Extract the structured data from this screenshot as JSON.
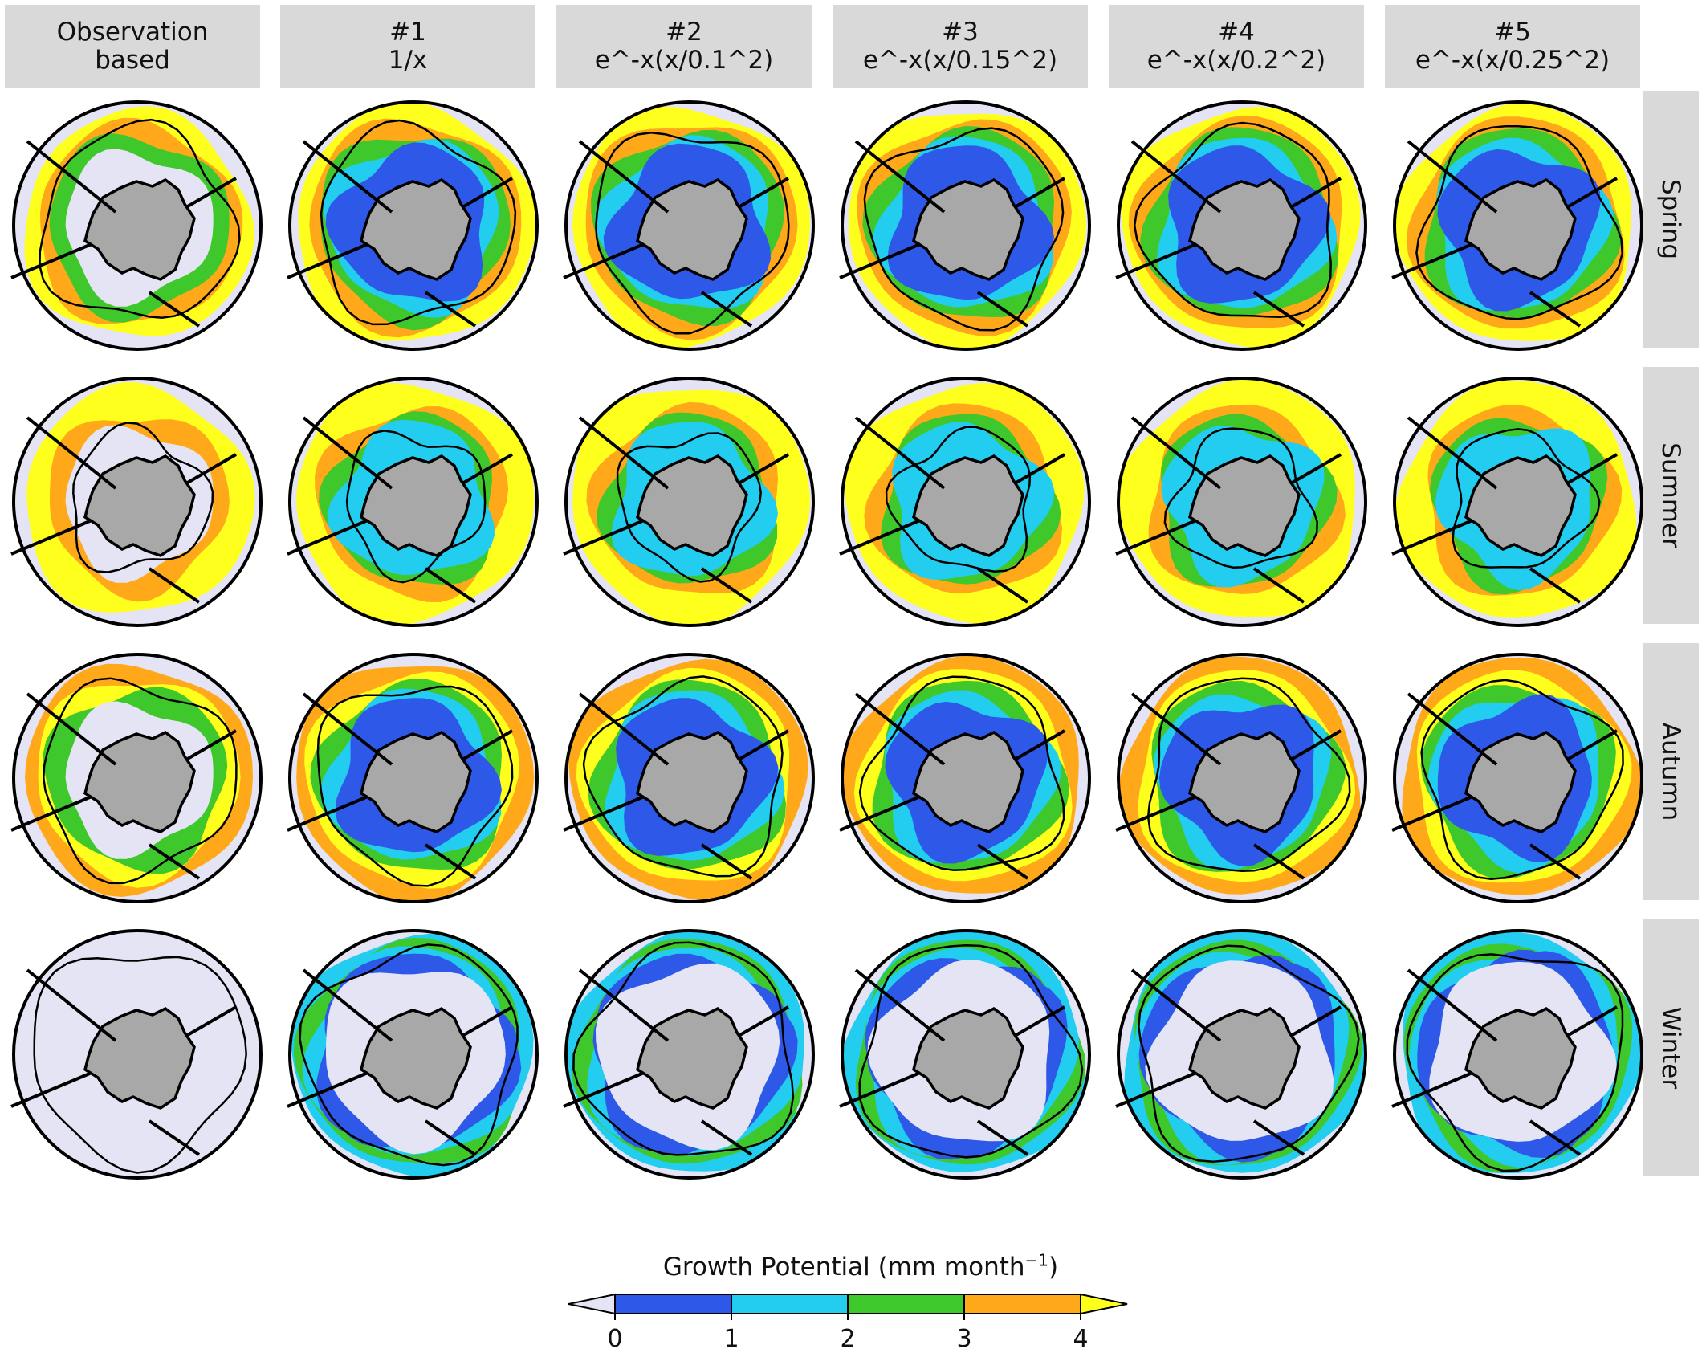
{
  "columns": [
    {
      "line1": "Observation",
      "line2": "based"
    },
    {
      "line1": "#1",
      "line2": "1/x"
    },
    {
      "line1": "#2",
      "line2": "e^-x(x/0.1^2)"
    },
    {
      "line1": "#3",
      "line2": "e^-x(x/0.15^2)"
    },
    {
      "line1": "#4",
      "line2": "e^-x(x/0.2^2)"
    },
    {
      "line1": "#5",
      "line2": "e^-x(x/0.25^2)"
    }
  ],
  "rows": [
    "Spring",
    "Summer",
    "Autumn",
    "Winter"
  ],
  "colorbar": {
    "title_prefix": "Growth Potential (mm month",
    "title_superscript": "−1",
    "title_suffix": ")",
    "ticks": [
      "0",
      "1",
      "2",
      "3",
      "4"
    ],
    "colors": {
      "under": "#e4e4f4",
      "0-1": "#2e58e8",
      "1-2": "#22cdf0",
      "2-3": "#3ec82c",
      "3-4": "#ffa81a",
      "over": "#ffff1e"
    }
  },
  "map_colors": {
    "land": "#a8a8a8",
    "background": "#e4e4f4"
  }
}
